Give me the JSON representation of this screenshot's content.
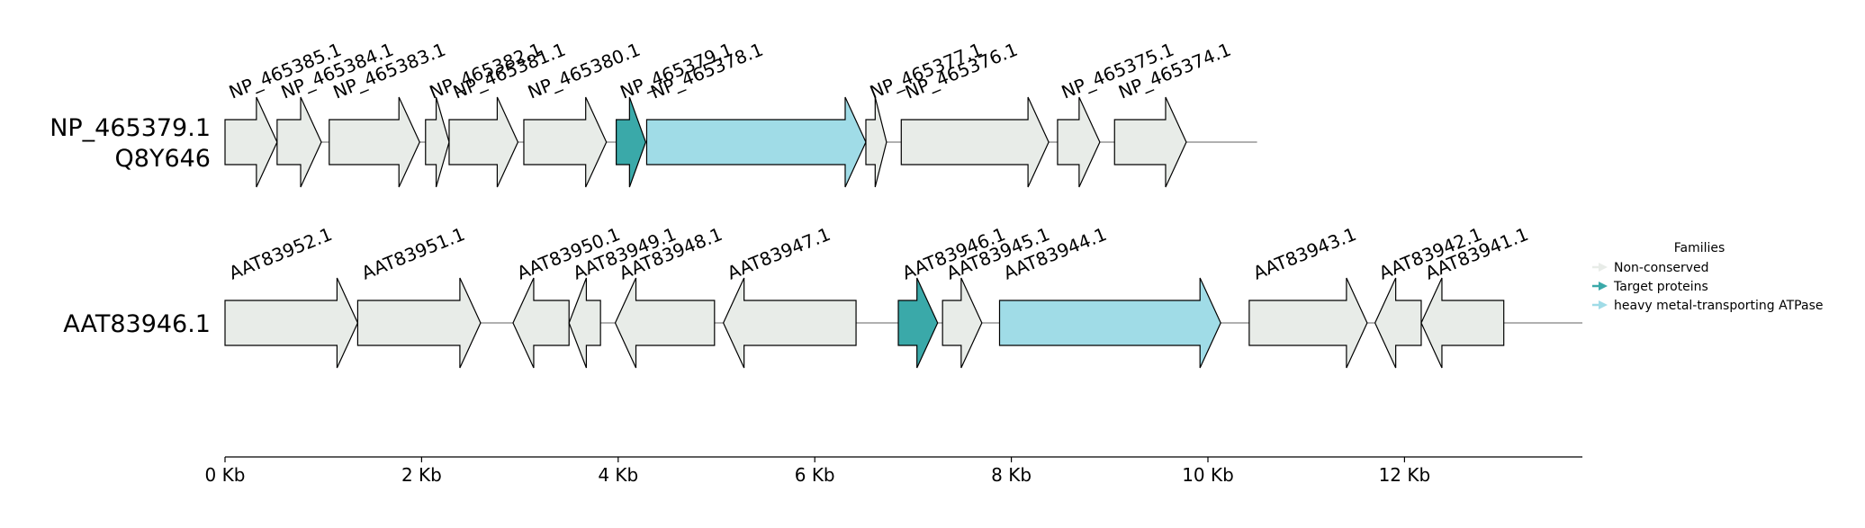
{
  "colors": {
    "non_conserved": "#e8ece8",
    "target": "#3aa9a9",
    "atpase": "#a0dce7",
    "stroke": "#000000",
    "line": "#808080"
  },
  "tracks": [
    {
      "label_lines": [
        "NP_465379.1",
        "Q8Y646"
      ],
      "line_end_kb": 10.5,
      "genes": [
        {
          "id": "NP_465385.1",
          "start": 0.0,
          "end": 0.53,
          "strand": 1,
          "family": "non_conserved"
        },
        {
          "id": "NP_465384.1",
          "start": 0.53,
          "end": 0.98,
          "strand": 1,
          "family": "non_conserved"
        },
        {
          "id": "NP_465383.1",
          "start": 1.06,
          "end": 1.98,
          "strand": 1,
          "family": "non_conserved"
        },
        {
          "id": "NP_465382.1",
          "start": 2.04,
          "end": 2.28,
          "strand": 1,
          "family": "non_conserved"
        },
        {
          "id": "NP_465381.1",
          "start": 2.28,
          "end": 2.98,
          "strand": 1,
          "family": "non_conserved"
        },
        {
          "id": "NP_465380.1",
          "start": 3.04,
          "end": 3.88,
          "strand": 1,
          "family": "non_conserved"
        },
        {
          "id": "NP_465379.1",
          "start": 3.98,
          "end": 4.28,
          "strand": 1,
          "family": "target"
        },
        {
          "id": "NP_465378.1",
          "start": 4.29,
          "end": 6.52,
          "strand": 1,
          "family": "atpase"
        },
        {
          "id": "NP_465377.1",
          "start": 6.52,
          "end": 6.73,
          "strand": 1,
          "family": "non_conserved"
        },
        {
          "id": "NP_465376.1",
          "start": 6.88,
          "end": 8.38,
          "strand": 1,
          "family": "non_conserved"
        },
        {
          "id": "NP_465375.1",
          "start": 8.47,
          "end": 8.9,
          "strand": 1,
          "family": "non_conserved"
        },
        {
          "id": "NP_465374.1",
          "start": 9.05,
          "end": 9.78,
          "strand": 1,
          "family": "non_conserved"
        }
      ]
    },
    {
      "label_lines": [
        "AAT83946.1"
      ],
      "line_end_kb": 13.81,
      "genes": [
        {
          "id": "AAT83952.1",
          "start": 0.0,
          "end": 1.35,
          "strand": 1,
          "family": "non_conserved"
        },
        {
          "id": "AAT83951.1",
          "start": 1.35,
          "end": 2.6,
          "strand": 1,
          "family": "non_conserved"
        },
        {
          "id": "AAT83950.1",
          "start": 2.93,
          "end": 3.5,
          "strand": -1,
          "family": "non_conserved"
        },
        {
          "id": "AAT83949.1",
          "start": 3.5,
          "end": 3.82,
          "strand": -1,
          "family": "non_conserved"
        },
        {
          "id": "AAT83948.1",
          "start": 3.97,
          "end": 4.98,
          "strand": -1,
          "family": "non_conserved"
        },
        {
          "id": "AAT83947.1",
          "start": 5.07,
          "end": 6.42,
          "strand": -1,
          "family": "non_conserved"
        },
        {
          "id": "AAT83946.1",
          "start": 6.85,
          "end": 7.25,
          "strand": 1,
          "family": "target"
        },
        {
          "id": "AAT83945.1",
          "start": 7.3,
          "end": 7.7,
          "strand": 1,
          "family": "non_conserved"
        },
        {
          "id": "AAT83944.1",
          "start": 7.88,
          "end": 10.13,
          "strand": 1,
          "family": "atpase"
        },
        {
          "id": "AAT83943.1",
          "start": 10.42,
          "end": 11.62,
          "strand": 1,
          "family": "non_conserved"
        },
        {
          "id": "AAT83942.1",
          "start": 11.7,
          "end": 12.17,
          "strand": -1,
          "family": "non_conserved"
        },
        {
          "id": "AAT83941.1",
          "start": 12.17,
          "end": 13.01,
          "strand": -1,
          "family": "non_conserved"
        }
      ]
    }
  ],
  "axis": {
    "max_kb": 13.81,
    "ticks": [
      {
        "kb": 0,
        "label": "0 Kb"
      },
      {
        "kb": 2,
        "label": "2 Kb"
      },
      {
        "kb": 4,
        "label": "4 Kb"
      },
      {
        "kb": 6,
        "label": "6 Kb"
      },
      {
        "kb": 8,
        "label": "8 Kb"
      },
      {
        "kb": 10,
        "label": "10 Kb"
      },
      {
        "kb": 12,
        "label": "12 Kb"
      }
    ]
  },
  "legend": {
    "title": "Families",
    "items": [
      {
        "label": "Non-conserved",
        "family": "non_conserved"
      },
      {
        "label": "Target proteins",
        "family": "target"
      },
      {
        "label": "heavy metal-transporting ATPase",
        "family": "atpase"
      }
    ]
  }
}
